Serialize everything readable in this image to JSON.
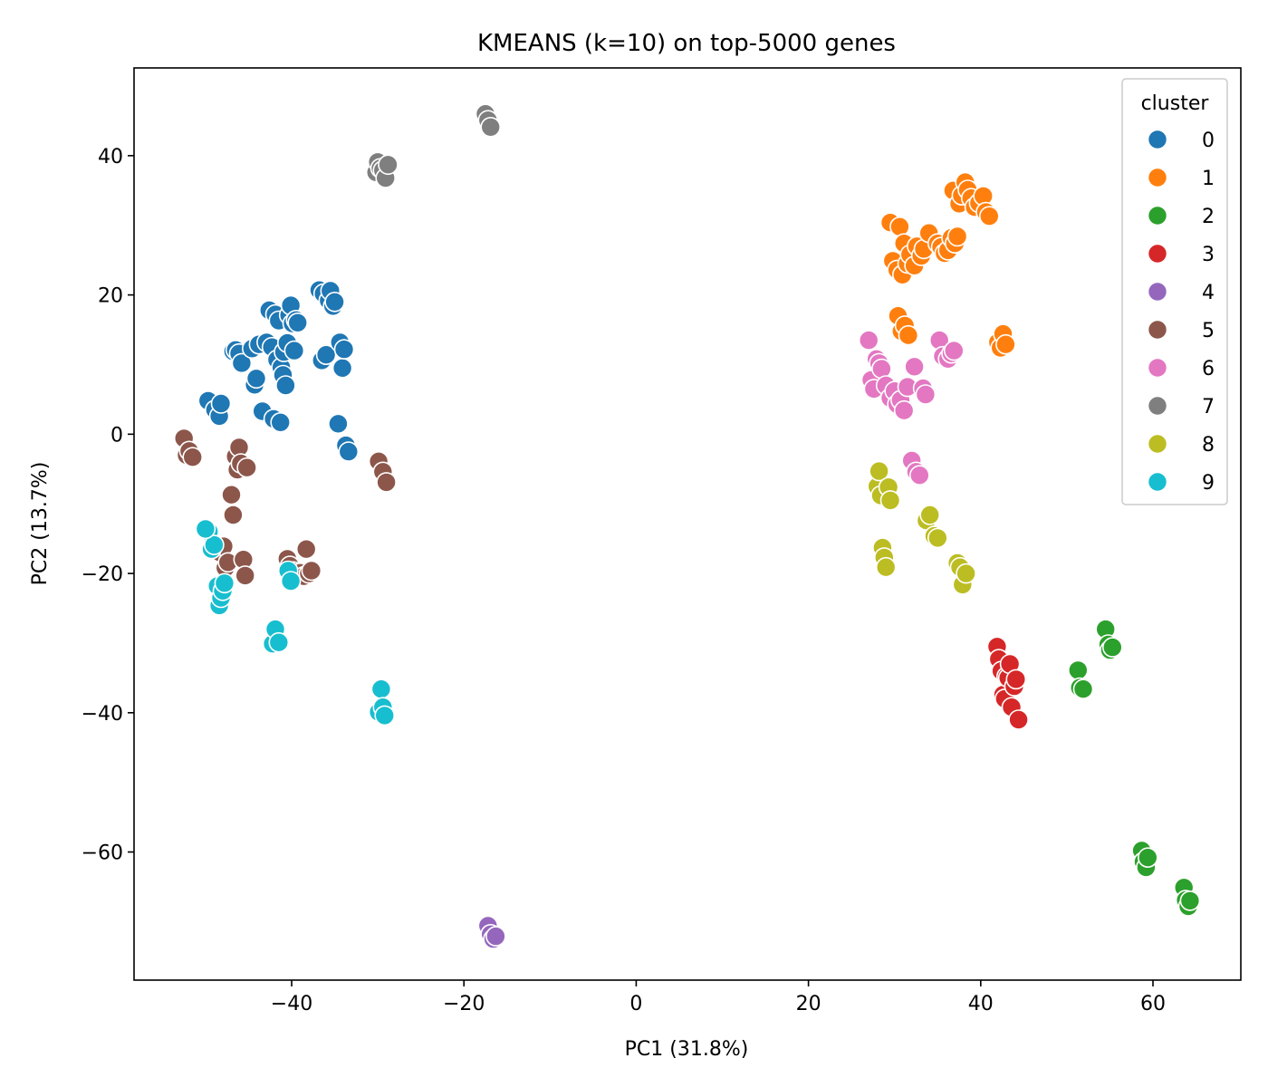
{
  "chart_data": {
    "type": "scatter",
    "title": "KMEANS (k=10) on top-5000 genes",
    "xlabel": "PC1 (31.8%)",
    "ylabel": "PC2 (13.7%)",
    "xlim": [
      -58.3,
      70.2
    ],
    "ylim": [
      -78.4,
      52.6
    ],
    "xticks": [
      -40,
      -20,
      0,
      20,
      40,
      60
    ],
    "yticks": [
      -60,
      -40,
      -20,
      0,
      20,
      40
    ],
    "grid": false,
    "legend": {
      "title": "cluster",
      "placement": "top-right"
    },
    "series": [
      {
        "name": "0",
        "color": "#1f77b4",
        "points": [
          [
            -49.7,
            4.8
          ],
          [
            -48.9,
            3.5
          ],
          [
            -48.4,
            2.6
          ],
          [
            -48.2,
            4.4
          ],
          [
            -46.8,
            11.9
          ],
          [
            -46.5,
            12.1
          ],
          [
            -46.1,
            11.6
          ],
          [
            -45.8,
            10.2
          ],
          [
            -44.6,
            12.3
          ],
          [
            -44.3,
            7.1
          ],
          [
            -44.1,
            8.0
          ],
          [
            -43.8,
            12.9
          ],
          [
            -43.4,
            3.3
          ],
          [
            -42.9,
            13.2
          ],
          [
            -42.6,
            17.8
          ],
          [
            -42.3,
            12.5
          ],
          [
            -42.1,
            2.2
          ],
          [
            -41.9,
            17.2
          ],
          [
            -41.7,
            10.7
          ],
          [
            -41.5,
            16.3
          ],
          [
            -41.3,
            1.7
          ],
          [
            -41.2,
            9.6
          ],
          [
            -41.0,
            8.5
          ],
          [
            -40.9,
            11.8
          ],
          [
            -40.7,
            7.0
          ],
          [
            -40.5,
            13.1
          ],
          [
            -40.3,
            17.1
          ],
          [
            -40.1,
            18.5
          ],
          [
            -39.9,
            15.9
          ],
          [
            -39.7,
            12.0
          ],
          [
            -39.5,
            16.4
          ],
          [
            -39.3,
            16.0
          ],
          [
            -36.8,
            20.7
          ],
          [
            -36.5,
            10.6
          ],
          [
            -36.3,
            20.2
          ],
          [
            -36.0,
            11.4
          ],
          [
            -35.7,
            19.2
          ],
          [
            -35.5,
            20.6
          ],
          [
            -35.2,
            18.4
          ],
          [
            -35.0,
            19.0
          ],
          [
            -34.6,
            1.5
          ],
          [
            -34.4,
            13.2
          ],
          [
            -34.1,
            9.5
          ],
          [
            -33.9,
            12.2
          ],
          [
            -33.7,
            -1.6
          ],
          [
            -33.4,
            -2.5
          ]
        ]
      },
      {
        "name": "1",
        "color": "#ff7f0e",
        "points": [
          [
            29.5,
            30.4
          ],
          [
            29.8,
            24.9
          ],
          [
            30.3,
            23.6
          ],
          [
            30.6,
            29.8
          ],
          [
            30.9,
            22.9
          ],
          [
            31.1,
            27.4
          ],
          [
            31.5,
            24.5
          ],
          [
            31.8,
            25.8
          ],
          [
            32.3,
            24.2
          ],
          [
            32.6,
            27.0
          ],
          [
            33.1,
            25.6
          ],
          [
            33.4,
            26.6
          ],
          [
            34.0,
            28.9
          ],
          [
            35.0,
            27.4
          ],
          [
            35.4,
            26.9
          ],
          [
            35.8,
            26.0
          ],
          [
            36.2,
            26.4
          ],
          [
            36.6,
            28.2
          ],
          [
            37.0,
            27.4
          ],
          [
            36.8,
            35.0
          ],
          [
            37.3,
            28.4
          ],
          [
            37.5,
            33.1
          ],
          [
            37.8,
            34.3
          ],
          [
            38.2,
            36.2
          ],
          [
            38.5,
            35.1
          ],
          [
            38.9,
            33.9
          ],
          [
            39.3,
            32.6
          ],
          [
            39.8,
            33.2
          ],
          [
            40.3,
            34.2
          ],
          [
            40.6,
            31.9
          ],
          [
            41.0,
            31.3
          ],
          [
            30.4,
            17.0
          ],
          [
            30.8,
            14.8
          ],
          [
            31.2,
            15.6
          ],
          [
            31.6,
            14.2
          ],
          [
            42.0,
            13.2
          ],
          [
            42.3,
            12.4
          ],
          [
            42.6,
            14.4
          ],
          [
            42.9,
            12.9
          ]
        ]
      },
      {
        "name": "2",
        "color": "#2ca02c",
        "points": [
          [
            51.3,
            -33.9
          ],
          [
            51.5,
            -36.4
          ],
          [
            51.9,
            -36.6
          ],
          [
            54.5,
            -28.0
          ],
          [
            54.8,
            -30.2
          ],
          [
            55.0,
            -31.0
          ],
          [
            55.3,
            -30.6
          ],
          [
            58.7,
            -59.8
          ],
          [
            58.9,
            -61.4
          ],
          [
            59.2,
            -62.2
          ],
          [
            59.4,
            -60.8
          ],
          [
            63.6,
            -65.1
          ],
          [
            63.8,
            -66.9
          ],
          [
            64.1,
            -67.8
          ],
          [
            64.3,
            -67.0
          ]
        ]
      },
      {
        "name": "3",
        "color": "#d62728",
        "points": [
          [
            41.9,
            -30.5
          ],
          [
            42.1,
            -32.3
          ],
          [
            42.4,
            -34.0
          ],
          [
            42.6,
            -37.4
          ],
          [
            42.8,
            -38.0
          ],
          [
            43.0,
            -34.8
          ],
          [
            43.2,
            -35.0
          ],
          [
            43.4,
            -33.0
          ],
          [
            43.6,
            -39.2
          ],
          [
            43.9,
            -36.2
          ],
          [
            44.1,
            -35.2
          ],
          [
            44.4,
            -41.0
          ]
        ]
      },
      {
        "name": "4",
        "color": "#9467bd",
        "points": [
          [
            -17.2,
            -70.6
          ],
          [
            -16.9,
            -71.8
          ],
          [
            -16.6,
            -72.5
          ],
          [
            -16.3,
            -72.1
          ]
        ]
      },
      {
        "name": "5",
        "color": "#8c564b",
        "points": [
          [
            -52.5,
            -0.6
          ],
          [
            -52.2,
            -3.0
          ],
          [
            -51.9,
            -2.4
          ],
          [
            -51.5,
            -3.3
          ],
          [
            -48.3,
            -17.0
          ],
          [
            -47.9,
            -16.1
          ],
          [
            -47.7,
            -19.2
          ],
          [
            -47.4,
            -18.4
          ],
          [
            -47.0,
            -8.7
          ],
          [
            -46.8,
            -11.6
          ],
          [
            -46.5,
            -3.2
          ],
          [
            -46.3,
            -5.1
          ],
          [
            -46.1,
            -1.9
          ],
          [
            -45.9,
            -4.2
          ],
          [
            -45.6,
            -18.0
          ],
          [
            -45.4,
            -20.3
          ],
          [
            -45.2,
            -4.8
          ],
          [
            -40.5,
            -17.9
          ],
          [
            -40.2,
            -18.9
          ],
          [
            -39.8,
            -19.7
          ],
          [
            -39.0,
            -19.9
          ],
          [
            -38.6,
            -20.4
          ],
          [
            -38.3,
            -16.5
          ],
          [
            -38.0,
            -20.0
          ],
          [
            -37.7,
            -19.6
          ],
          [
            -29.9,
            -3.9
          ],
          [
            -29.4,
            -5.4
          ],
          [
            -29.0,
            -6.9
          ]
        ]
      },
      {
        "name": "6",
        "color": "#e377c2",
        "points": [
          [
            27.0,
            13.5
          ],
          [
            27.3,
            7.8
          ],
          [
            27.6,
            6.5
          ],
          [
            27.9,
            10.8
          ],
          [
            28.2,
            10.2
          ],
          [
            28.5,
            9.4
          ],
          [
            29.0,
            7.0
          ],
          [
            29.5,
            5.2
          ],
          [
            30.0,
            6.2
          ],
          [
            30.3,
            4.3
          ],
          [
            30.7,
            4.9
          ],
          [
            31.1,
            3.4
          ],
          [
            31.5,
            6.8
          ],
          [
            32.0,
            -3.8
          ],
          [
            32.3,
            9.7
          ],
          [
            32.5,
            -5.4
          ],
          [
            32.9,
            -5.9
          ],
          [
            33.3,
            6.6
          ],
          [
            33.6,
            5.7
          ],
          [
            35.2,
            13.5
          ],
          [
            35.6,
            11.2
          ],
          [
            36.2,
            10.8
          ],
          [
            36.6,
            11.6
          ],
          [
            36.9,
            12.0
          ]
        ]
      },
      {
        "name": "7",
        "color": "#7f7f7f",
        "points": [
          [
            -30.2,
            37.6
          ],
          [
            -30.0,
            39.1
          ],
          [
            -29.7,
            38.2
          ],
          [
            -29.4,
            37.9
          ],
          [
            -29.1,
            36.8
          ],
          [
            -28.8,
            38.7
          ],
          [
            -17.5,
            46.0
          ],
          [
            -17.2,
            45.1
          ],
          [
            -16.9,
            44.1
          ]
        ]
      },
      {
        "name": "8",
        "color": "#bcbd22",
        "points": [
          [
            28.0,
            -7.5
          ],
          [
            28.2,
            -5.3
          ],
          [
            28.4,
            -8.8
          ],
          [
            28.6,
            -16.3
          ],
          [
            28.8,
            -17.7
          ],
          [
            29.0,
            -19.1
          ],
          [
            29.3,
            -7.6
          ],
          [
            29.5,
            -9.5
          ],
          [
            33.7,
            -12.4
          ],
          [
            34.1,
            -11.6
          ],
          [
            34.6,
            -14.6
          ],
          [
            35.0,
            -14.9
          ],
          [
            37.3,
            -18.5
          ],
          [
            37.6,
            -19.1
          ],
          [
            37.9,
            -21.6
          ],
          [
            38.3,
            -20.0
          ]
        ]
      },
      {
        "name": "9",
        "color": "#17becf",
        "points": [
          [
            -49.6,
            -14.0
          ],
          [
            -49.3,
            -16.5
          ],
          [
            -49.0,
            -15.9
          ],
          [
            -48.6,
            -21.8
          ],
          [
            -48.4,
            -24.6
          ],
          [
            -48.2,
            -23.5
          ],
          [
            -48.0,
            -22.5
          ],
          [
            -47.8,
            -21.4
          ],
          [
            -50.0,
            -13.6
          ],
          [
            -42.2,
            -30.1
          ],
          [
            -41.9,
            -28.0
          ],
          [
            -41.5,
            -29.9
          ],
          [
            -40.4,
            -19.6
          ],
          [
            -40.1,
            -21.1
          ],
          [
            -29.9,
            -39.9
          ],
          [
            -29.6,
            -36.6
          ],
          [
            -29.4,
            -39.2
          ],
          [
            -29.2,
            -40.4
          ]
        ]
      }
    ]
  }
}
